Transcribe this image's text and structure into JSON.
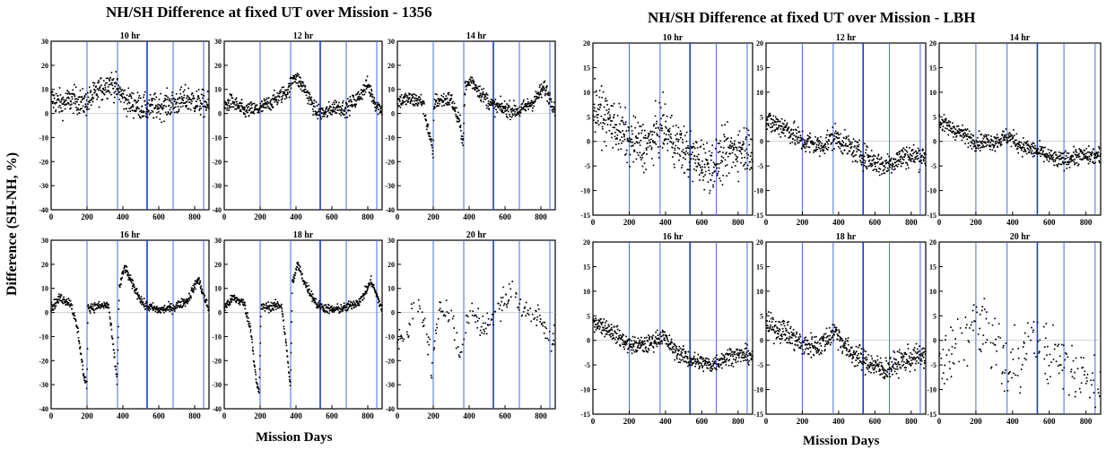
{
  "figure": {
    "left_title": "NH/SH Difference at fixed UT over Mission - 1356",
    "right_title": "NH/SH Difference at fixed UT over Mission - LBH",
    "ylabel": "Difference (SH-NH, %)",
    "left_xlabel": "Mission Days",
    "right_xlabel": "Mission Days"
  },
  "chart_data": [
    {
      "type": "scatter",
      "group": "1356",
      "panels": [
        {
          "title": "10 hr",
          "xlim": [
            0,
            880
          ],
          "ylim": [
            -40,
            30
          ],
          "xticks": [
            0,
            200,
            400,
            600,
            800
          ],
          "yticks": [
            -40,
            -30,
            -20,
            -10,
            0,
            10,
            20,
            30
          ],
          "vlines": [
            200,
            370,
            535,
            680,
            850
          ],
          "profile": [
            [
              0,
              6
            ],
            [
              60,
              4
            ],
            [
              120,
              6
            ],
            [
              190,
              4
            ],
            [
              260,
              9
            ],
            [
              330,
              13
            ],
            [
              370,
              10
            ],
            [
              420,
              5
            ],
            [
              535,
              2
            ],
            [
              600,
              3
            ],
            [
              680,
              4
            ],
            [
              760,
              6
            ],
            [
              850,
              4
            ],
            [
              880,
              3
            ]
          ],
          "spread": 5
        },
        {
          "title": "12 hr",
          "xlim": [
            0,
            880
          ],
          "ylim": [
            -40,
            30
          ],
          "xticks": [
            0,
            200,
            400,
            600,
            800
          ],
          "yticks": [
            -40,
            -30,
            -20,
            -10,
            0,
            10,
            20,
            30
          ],
          "vlines": [
            200,
            370,
            535,
            680,
            850
          ],
          "profile": [
            [
              0,
              3
            ],
            [
              40,
              5
            ],
            [
              110,
              1
            ],
            [
              200,
              2
            ],
            [
              290,
              6
            ],
            [
              360,
              10
            ],
            [
              390,
              16
            ],
            [
              450,
              10
            ],
            [
              510,
              1
            ],
            [
              560,
              0
            ],
            [
              620,
              3
            ],
            [
              680,
              2
            ],
            [
              740,
              6
            ],
            [
              800,
              12
            ],
            [
              850,
              3
            ],
            [
              880,
              2
            ]
          ],
          "spread": 3
        },
        {
          "title": "14 hr",
          "xlim": [
            0,
            880
          ],
          "ylim": [
            -40,
            30
          ],
          "xticks": [
            0,
            200,
            400,
            600,
            800
          ],
          "yticks": [
            -40,
            -30,
            -20,
            -10,
            0,
            10,
            20,
            30
          ],
          "vlines": [
            200,
            370,
            535,
            680,
            850
          ],
          "profile": [
            [
              0,
              5
            ],
            [
              60,
              6
            ],
            [
              140,
              5
            ],
            [
              175,
              -8
            ],
            [
              200,
              -17
            ],
            [
              205,
              5
            ],
            [
              300,
              6
            ],
            [
              350,
              -5
            ],
            [
              368,
              -12
            ],
            [
              375,
              10
            ],
            [
              410,
              14
            ],
            [
              470,
              8
            ],
            [
              535,
              3
            ],
            [
              600,
              2
            ],
            [
              680,
              1
            ],
            [
              760,
              5
            ],
            [
              820,
              11
            ],
            [
              860,
              5
            ],
            [
              880,
              2
            ]
          ],
          "spread": 3
        },
        {
          "title": "16 hr",
          "xlim": [
            0,
            880
          ],
          "ylim": [
            -40,
            30
          ],
          "xticks": [
            0,
            200,
            400,
            600,
            800
          ],
          "yticks": [
            -40,
            -30,
            -20,
            -10,
            0,
            10,
            20,
            30
          ],
          "vlines": [
            200,
            370,
            535,
            680,
            850
          ],
          "profile": [
            [
              0,
              2
            ],
            [
              50,
              6
            ],
            [
              110,
              4
            ],
            [
              150,
              -8
            ],
            [
              185,
              -28
            ],
            [
              200,
              -30
            ],
            [
              205,
              2
            ],
            [
              320,
              3
            ],
            [
              355,
              -20
            ],
            [
              368,
              -29
            ],
            [
              380,
              10
            ],
            [
              410,
              19
            ],
            [
              450,
              12
            ],
            [
              520,
              3
            ],
            [
              600,
              1
            ],
            [
              680,
              2
            ],
            [
              760,
              5
            ],
            [
              820,
              14
            ],
            [
              860,
              5
            ],
            [
              880,
              1
            ]
          ],
          "spread": 1.8
        },
        {
          "title": "18 hr",
          "xlim": [
            0,
            880
          ],
          "ylim": [
            -40,
            30
          ],
          "xticks": [
            0,
            200,
            400,
            600,
            800
          ],
          "yticks": [
            -40,
            -30,
            -20,
            -10,
            0,
            10,
            20,
            30
          ],
          "vlines": [
            200,
            370,
            535,
            680,
            850
          ],
          "profile": [
            [
              0,
              2
            ],
            [
              50,
              6
            ],
            [
              110,
              4
            ],
            [
              150,
              -8
            ],
            [
              180,
              -30
            ],
            [
              195,
              -33
            ],
            [
              205,
              2
            ],
            [
              320,
              3
            ],
            [
              355,
              -20
            ],
            [
              368,
              -32
            ],
            [
              380,
              12
            ],
            [
              410,
              20
            ],
            [
              450,
              12
            ],
            [
              520,
              3
            ],
            [
              600,
              1
            ],
            [
              680,
              2
            ],
            [
              760,
              5
            ],
            [
              820,
              13
            ],
            [
              860,
              5
            ],
            [
              880,
              1
            ]
          ],
          "spread": 1.8
        },
        {
          "title": "20 hr",
          "xlim": [
            0,
            880
          ],
          "ylim": [
            -40,
            30
          ],
          "xticks": [
            0,
            200,
            400,
            600,
            800
          ],
          "yticks": [
            -40,
            -30,
            -20,
            -10,
            0,
            10,
            20,
            30
          ],
          "vlines": [
            200,
            370,
            535,
            680,
            850
          ],
          "profile": [
            [
              0,
              -12
            ],
            [
              60,
              -8
            ],
            [
              100,
              5
            ],
            [
              160,
              -5
            ],
            [
              195,
              -25
            ],
            [
              230,
              3
            ],
            [
              300,
              0
            ],
            [
              350,
              -20
            ],
            [
              380,
              -5
            ],
            [
              420,
              3
            ],
            [
              470,
              -8
            ],
            [
              520,
              -2
            ],
            [
              590,
              4
            ],
            [
              640,
              8
            ],
            [
              720,
              0
            ],
            [
              790,
              -2
            ],
            [
              850,
              -12
            ],
            [
              880,
              -8
            ]
          ],
          "spread": 5,
          "sparse": true
        }
      ]
    },
    {
      "type": "scatter",
      "group": "LBH",
      "panels": [
        {
          "title": "10 hr",
          "xlim": [
            0,
            880
          ],
          "ylim": [
            -15,
            20
          ],
          "xticks": [
            0,
            200,
            400,
            600,
            800
          ],
          "yticks": [
            -15,
            -10,
            -5,
            0,
            5,
            10,
            15,
            20
          ],
          "vlines": [
            200,
            370,
            535,
            680,
            850
          ],
          "profile": [
            [
              0,
              7
            ],
            [
              100,
              4
            ],
            [
              200,
              0
            ],
            [
              300,
              -1
            ],
            [
              380,
              3
            ],
            [
              450,
              0
            ],
            [
              535,
              -3
            ],
            [
              650,
              -5
            ],
            [
              760,
              -2
            ],
            [
              880,
              -1
            ]
          ],
          "spread": 4.5
        },
        {
          "title": "12 hr",
          "xlim": [
            0,
            880
          ],
          "ylim": [
            -15,
            20
          ],
          "xticks": [
            0,
            200,
            400,
            600,
            800
          ],
          "yticks": [
            -15,
            -10,
            -5,
            0,
            5,
            10,
            15,
            20
          ],
          "vlines": [
            200,
            370,
            535,
            680,
            850
          ],
          "profile": [
            [
              0,
              4
            ],
            [
              100,
              3
            ],
            [
              200,
              0
            ],
            [
              300,
              -1
            ],
            [
              380,
              1
            ],
            [
              450,
              -1
            ],
            [
              535,
              -3
            ],
            [
              650,
              -5
            ],
            [
              760,
              -3
            ],
            [
              880,
              -3
            ]
          ],
          "spread": 2.2
        },
        {
          "title": "14 hr",
          "xlim": [
            0,
            880
          ],
          "ylim": [
            -15,
            20
          ],
          "xticks": [
            0,
            200,
            400,
            600,
            800
          ],
          "yticks": [
            -15,
            -10,
            -5,
            0,
            5,
            10,
            15,
            20
          ],
          "vlines": [
            200,
            370,
            535,
            680,
            850
          ],
          "profile": [
            [
              0,
              4
            ],
            [
              100,
              2
            ],
            [
              200,
              0
            ],
            [
              300,
              0
            ],
            [
              380,
              1
            ],
            [
              450,
              -1
            ],
            [
              535,
              -2
            ],
            [
              650,
              -4
            ],
            [
              760,
              -3
            ],
            [
              880,
              -3
            ]
          ],
          "spread": 1.6
        },
        {
          "title": "16 hr",
          "xlim": [
            0,
            880
          ],
          "ylim": [
            -15,
            20
          ],
          "xticks": [
            0,
            200,
            400,
            600,
            800
          ],
          "yticks": [
            -15,
            -10,
            -5,
            0,
            5,
            10,
            15,
            20
          ],
          "vlines": [
            200,
            370,
            535,
            680,
            850
          ],
          "profile": [
            [
              0,
              4
            ],
            [
              100,
              2
            ],
            [
              200,
              -1
            ],
            [
              300,
              -1
            ],
            [
              380,
              1
            ],
            [
              450,
              -2
            ],
            [
              535,
              -4
            ],
            [
              650,
              -5
            ],
            [
              760,
              -3
            ],
            [
              880,
              -3
            ]
          ],
          "spread": 1.6
        },
        {
          "title": "18 hr",
          "xlim": [
            0,
            880
          ],
          "ylim": [
            -15,
            20
          ],
          "xticks": [
            0,
            200,
            400,
            600,
            800
          ],
          "yticks": [
            -15,
            -10,
            -5,
            0,
            5,
            10,
            15,
            20
          ],
          "vlines": [
            200,
            370,
            535,
            680,
            850
          ],
          "profile": [
            [
              0,
              3
            ],
            [
              100,
              2
            ],
            [
              200,
              -1
            ],
            [
              300,
              -1
            ],
            [
              380,
              2
            ],
            [
              450,
              -2
            ],
            [
              535,
              -4
            ],
            [
              650,
              -6
            ],
            [
              760,
              -4
            ],
            [
              880,
              -3
            ]
          ],
          "spread": 2.2
        },
        {
          "title": "20 hr",
          "xlim": [
            0,
            880
          ],
          "ylim": [
            -15,
            20
          ],
          "xticks": [
            0,
            200,
            400,
            600,
            800
          ],
          "yticks": [
            -15,
            -10,
            -5,
            0,
            5,
            10,
            15,
            20
          ],
          "vlines": [
            200,
            370,
            535,
            680,
            850
          ],
          "profile": [
            [
              0,
              -5
            ],
            [
              100,
              -2
            ],
            [
              200,
              4
            ],
            [
              260,
              2
            ],
            [
              330,
              -3
            ],
            [
              380,
              -6
            ],
            [
              450,
              -2
            ],
            [
              535,
              0
            ],
            [
              600,
              -3
            ],
            [
              680,
              -4
            ],
            [
              760,
              -6
            ],
            [
              850,
              -8
            ],
            [
              880,
              -6
            ]
          ],
          "spread": 6,
          "sparse": true
        }
      ]
    }
  ]
}
